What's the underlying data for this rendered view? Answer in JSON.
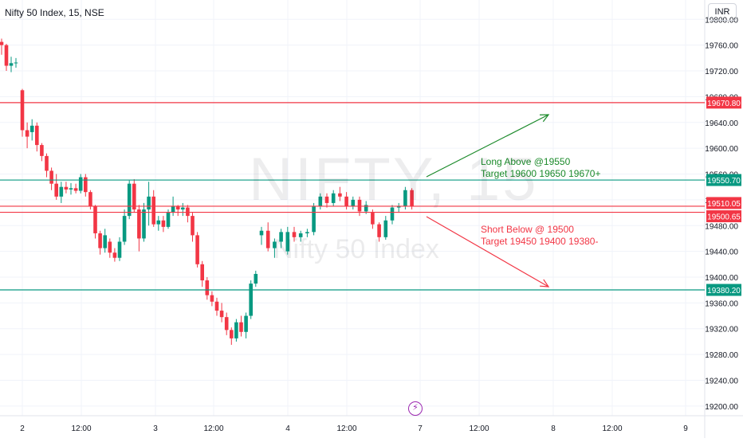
{
  "header": {
    "symbol": "Nifty 50 Index, 15, NSE",
    "currency": "INR"
  },
  "watermark": {
    "ticker": "NIFTY, 15",
    "name": "Nifty 50 Index"
  },
  "chart_data": {
    "type": "candlestick",
    "y_axis": {
      "range": [
        19185,
        19830
      ],
      "ticks": [
        19200,
        19240,
        19280,
        19320,
        19360,
        19400,
        19440,
        19480,
        19520,
        19560,
        19600,
        19640,
        19680,
        19720,
        19760,
        19800
      ]
    },
    "x_axis": {
      "tick_labels": [
        "2",
        "12:00",
        "3",
        "12:00",
        "4",
        "12:00",
        "7",
        "12:00",
        "8",
        "12:00",
        "9"
      ]
    },
    "candles": [
      {
        "o": 19765,
        "h": 19770,
        "l": 19745,
        "c": 19760
      },
      {
        "o": 19760,
        "h": 19762,
        "l": 19720,
        "c": 19728
      },
      {
        "o": 19728,
        "h": 19742,
        "l": 19718,
        "c": 19732
      },
      {
        "o": 19732,
        "h": 19740,
        "l": 19725,
        "c": 19733
      },
      {
        "o": 19690,
        "h": 19692,
        "l": 19618,
        "c": 19628
      },
      {
        "o": 19628,
        "h": 19640,
        "l": 19600,
        "c": 19618
      },
      {
        "o": 19625,
        "h": 19645,
        "l": 19612,
        "c": 19635
      },
      {
        "o": 19635,
        "h": 19640,
        "l": 19595,
        "c": 19605
      },
      {
        "o": 19605,
        "h": 19608,
        "l": 19580,
        "c": 19588
      },
      {
        "o": 19588,
        "h": 19592,
        "l": 19555,
        "c": 19565
      },
      {
        "o": 19565,
        "h": 19570,
        "l": 19535,
        "c": 19545
      },
      {
        "o": 19545,
        "h": 19560,
        "l": 19520,
        "c": 19525
      },
      {
        "o": 19525,
        "h": 19548,
        "l": 19515,
        "c": 19540
      },
      {
        "o": 19540,
        "h": 19548,
        "l": 19530,
        "c": 19536
      },
      {
        "o": 19536,
        "h": 19546,
        "l": 19528,
        "c": 19538
      },
      {
        "o": 19538,
        "h": 19545,
        "l": 19530,
        "c": 19534
      },
      {
        "o": 19534,
        "h": 19560,
        "l": 19530,
        "c": 19555
      },
      {
        "o": 19555,
        "h": 19560,
        "l": 19525,
        "c": 19532
      },
      {
        "o": 19532,
        "h": 19535,
        "l": 19505,
        "c": 19510
      },
      {
        "o": 19510,
        "h": 19512,
        "l": 19460,
        "c": 19468
      },
      {
        "o": 19468,
        "h": 19472,
        "l": 19435,
        "c": 19445
      },
      {
        "o": 19445,
        "h": 19475,
        "l": 19438,
        "c": 19465
      },
      {
        "o": 19455,
        "h": 19460,
        "l": 19430,
        "c": 19438
      },
      {
        "o": 19438,
        "h": 19445,
        "l": 19424,
        "c": 19430
      },
      {
        "o": 19430,
        "h": 19462,
        "l": 19425,
        "c": 19455
      },
      {
        "o": 19455,
        "h": 19505,
        "l": 19450,
        "c": 19495
      },
      {
        "o": 19495,
        "h": 19550,
        "l": 19490,
        "c": 19545
      },
      {
        "o": 19545,
        "h": 19552,
        "l": 19500,
        "c": 19505
      },
      {
        "o": 19505,
        "h": 19512,
        "l": 19440,
        "c": 19460
      },
      {
        "o": 19460,
        "h": 19515,
        "l": 19455,
        "c": 19505
      },
      {
        "o": 19505,
        "h": 19548,
        "l": 19480,
        "c": 19525
      },
      {
        "o": 19525,
        "h": 19535,
        "l": 19478,
        "c": 19482
      },
      {
        "o": 19482,
        "h": 19495,
        "l": 19472,
        "c": 19488
      },
      {
        "o": 19488,
        "h": 19495,
        "l": 19470,
        "c": 19478
      },
      {
        "o": 19478,
        "h": 19505,
        "l": 19475,
        "c": 19500
      },
      {
        "o": 19500,
        "h": 19525,
        "l": 19495,
        "c": 19510
      },
      {
        "o": 19510,
        "h": 19512,
        "l": 19495,
        "c": 19505
      },
      {
        "o": 19505,
        "h": 19515,
        "l": 19495,
        "c": 19508
      },
      {
        "o": 19508,
        "h": 19512,
        "l": 19485,
        "c": 19495
      },
      {
        "o": 19495,
        "h": 19500,
        "l": 19455,
        "c": 19465
      },
      {
        "o": 19465,
        "h": 19470,
        "l": 19415,
        "c": 19420
      },
      {
        "o": 19420,
        "h": 19425,
        "l": 19385,
        "c": 19395
      },
      {
        "o": 19395,
        "h": 19400,
        "l": 19365,
        "c": 19372
      },
      {
        "o": 19372,
        "h": 19378,
        "l": 19355,
        "c": 19362
      },
      {
        "o": 19362,
        "h": 19368,
        "l": 19340,
        "c": 19348
      },
      {
        "o": 19348,
        "h": 19360,
        "l": 19330,
        "c": 19338
      },
      {
        "o": 19338,
        "h": 19345,
        "l": 19310,
        "c": 19318
      },
      {
        "o": 19318,
        "h": 19322,
        "l": 19295,
        "c": 19305
      },
      {
        "o": 19305,
        "h": 19335,
        "l": 19300,
        "c": 19330
      },
      {
        "o": 19330,
        "h": 19340,
        "l": 19308,
        "c": 19315
      },
      {
        "o": 19315,
        "h": 19345,
        "l": 19305,
        "c": 19340
      },
      {
        "o": 19340,
        "h": 19395,
        "l": 19335,
        "c": 19390
      },
      {
        "o": 19390,
        "h": 19410,
        "l": 19385,
        "c": 19405
      },
      {
        "o": 19465,
        "h": 19478,
        "l": 19450,
        "c": 19472
      },
      {
        "o": 19472,
        "h": 19485,
        "l": 19440,
        "c": 19445
      },
      {
        "o": 19445,
        "h": 19460,
        "l": 19430,
        "c": 19455
      },
      {
        "o": 19455,
        "h": 19475,
        "l": 19445,
        "c": 19470
      },
      {
        "o": 19440,
        "h": 19478,
        "l": 19435,
        "c": 19470
      },
      {
        "o": 19470,
        "h": 19478,
        "l": 19455,
        "c": 19462
      },
      {
        "o": 19462,
        "h": 19472,
        "l": 19455,
        "c": 19468
      },
      {
        "o": 19468,
        "h": 19475,
        "l": 19462,
        "c": 19470
      },
      {
        "o": 19470,
        "h": 19515,
        "l": 19465,
        "c": 19510
      },
      {
        "o": 19510,
        "h": 19530,
        "l": 19505,
        "c": 19525
      },
      {
        "o": 19525,
        "h": 19530,
        "l": 19508,
        "c": 19515
      },
      {
        "o": 19515,
        "h": 19535,
        "l": 19510,
        "c": 19530
      },
      {
        "o": 19530,
        "h": 19540,
        "l": 19518,
        "c": 19525
      },
      {
        "o": 19525,
        "h": 19532,
        "l": 19505,
        "c": 19510
      },
      {
        "o": 19510,
        "h": 19525,
        "l": 19505,
        "c": 19520
      },
      {
        "o": 19520,
        "h": 19525,
        "l": 19495,
        "c": 19502
      },
      {
        "o": 19502,
        "h": 19518,
        "l": 19498,
        "c": 19512
      },
      {
        "o": 19500,
        "h": 19505,
        "l": 19475,
        "c": 19482
      },
      {
        "o": 19482,
        "h": 19485,
        "l": 19455,
        "c": 19462
      },
      {
        "o": 19462,
        "h": 19495,
        "l": 19458,
        "c": 19488
      },
      {
        "o": 19488,
        "h": 19512,
        "l": 19482,
        "c": 19508
      },
      {
        "o": 19508,
        "h": 19515,
        "l": 19500,
        "c": 19510
      },
      {
        "o": 19510,
        "h": 19540,
        "l": 19505,
        "c": 19535
      },
      {
        "o": 19535,
        "h": 19538,
        "l": 19505,
        "c": 19510
      }
    ],
    "levels": [
      {
        "value": 19670.8,
        "label": "19670.80",
        "color": "#f23645"
      },
      {
        "value": 19550.7,
        "label": "19550.70",
        "color": "#089981"
      },
      {
        "value": 19510.05,
        "label": "19510.05",
        "color": "#f23645"
      },
      {
        "value": 19500.65,
        "label": "19500.65",
        "color": "#f23645"
      },
      {
        "value": 19380.2,
        "label": "19380.20",
        "color": "#089981"
      }
    ],
    "annotations": [
      {
        "lines": [
          "Long Above @19550",
          "Target 19600 19650 19670+"
        ],
        "color": "#1b8a2a"
      },
      {
        "lines": [
          "Short Below @ 19500",
          "Target 19450 19400 19380-"
        ],
        "color": "#f23645"
      }
    ],
    "colors": {
      "up": "#089981",
      "down": "#f23645"
    }
  }
}
